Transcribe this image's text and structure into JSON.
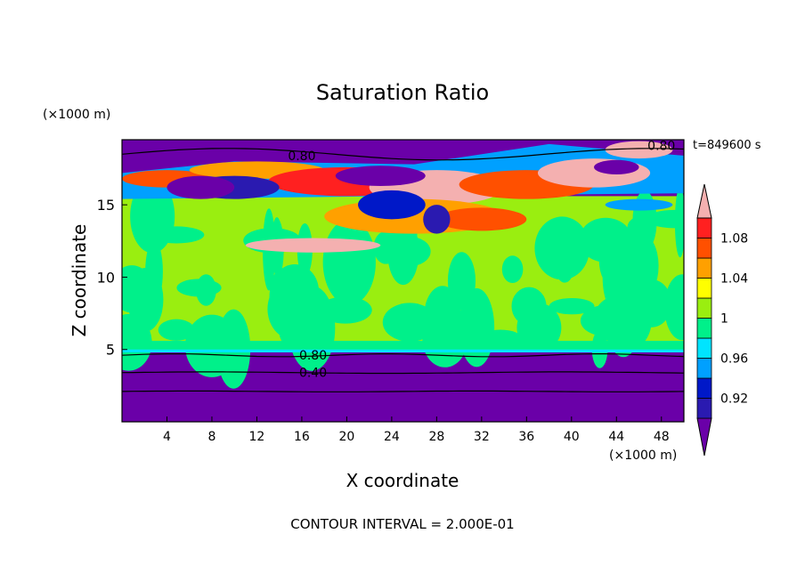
{
  "chart_data": {
    "type": "heatmap",
    "title": "Saturation Ratio",
    "xlabel": "X coordinate",
    "ylabel": "Z coordinate",
    "x_units": "(×1000 m)",
    "z_units": "(×1000 m)",
    "time_label": "t=849600 s",
    "footer": "CONTOUR INTERVAL = 2.000E-01",
    "xlim": [
      0,
      50
    ],
    "ylim": [
      0,
      19.5
    ],
    "x_ticks": [
      4,
      8,
      12,
      16,
      20,
      24,
      28,
      32,
      36,
      40,
      44,
      48
    ],
    "y_ticks": [
      5,
      10,
      15
    ],
    "colorbar": {
      "levels": [
        0.9,
        0.92,
        0.94,
        0.96,
        0.98,
        1.0,
        1.02,
        1.04,
        1.06,
        1.08,
        1.1
      ],
      "labels": [
        "0.92",
        "0.96",
        "1",
        "1.04",
        "1.08"
      ],
      "colors": [
        "#6a00a8",
        "#2a1ab0",
        "#0018c8",
        "#00a0ff",
        "#00e4ff",
        "#00f08a",
        "#9aee10",
        "#ffff00",
        "#ffa000",
        "#ff5000",
        "#ff2020",
        "#f4b0b0"
      ]
    },
    "contour_labels": [
      "0.80",
      "0.80",
      "0.40",
      "0.80"
    ],
    "layers": [
      {
        "z_range": [
          0,
          4.8
        ],
        "value": "<0.90",
        "description": "dry lower layer, purple"
      },
      {
        "z_range": [
          4.8,
          5.4
        ],
        "value": "~0.98",
        "description": "cyan/green band at base of moist layer"
      },
      {
        "z_range": [
          5.4,
          15.5
        ],
        "value": "0.98-1.02",
        "description": "mixed green / lime near-saturated layer"
      },
      {
        "z_range": [
          15.5,
          18.5
        ],
        "value": "0.90-1.10",
        "description": "upper layer with supersaturated patches"
      },
      {
        "z_range": [
          18.5,
          19.5
        ],
        "value": "<0.90",
        "description": "dry upper layer, purple"
      }
    ]
  }
}
